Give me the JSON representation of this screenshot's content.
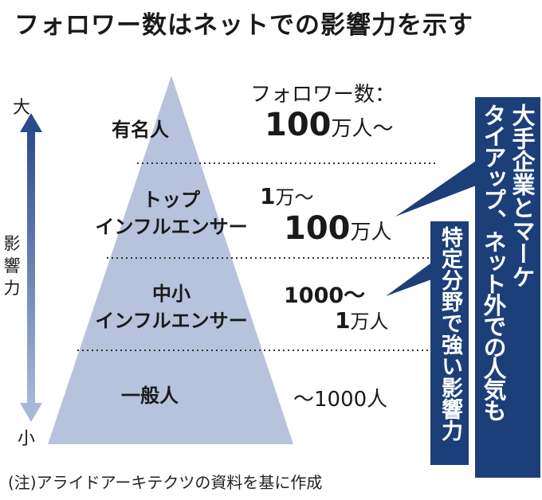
{
  "title": "フォロワー数はネットでの影響力を示す",
  "axis": {
    "top": "大",
    "bottom": "小",
    "label": "影響力"
  },
  "follower_header": "フォロワー数：",
  "levels": [
    {
      "name": "有名人",
      "range_num": "100",
      "range_unit": "万人〜"
    },
    {
      "name_line1": "トップ",
      "name_line2": "インフルエンサー",
      "range_num1": "1",
      "range_unit1": "万〜",
      "range_num2": "100",
      "range_unit2": "万人"
    },
    {
      "name_line1": "中小",
      "name_line2": "インフルエンサー",
      "range_num1": "1000〜",
      "range_num2": "1",
      "range_unit2": "万人"
    },
    {
      "name": "一般人",
      "range": "〜1000人"
    }
  ],
  "callouts": {
    "top": {
      "line1": "大手企業とマーケ",
      "line2": "タイアップ、ネット外での人気も"
    },
    "middle": {
      "text": "特定分野で強い影響力"
    }
  },
  "note": "(注)アライドアーキテクツの資料を基に作成",
  "colors": {
    "pyramid": "#b7c3dc",
    "callout": "#1c3f7a",
    "arrow_top": "#2c4a8a",
    "arrow_bottom": "#a4b4d4",
    "divider": "#333333"
  }
}
